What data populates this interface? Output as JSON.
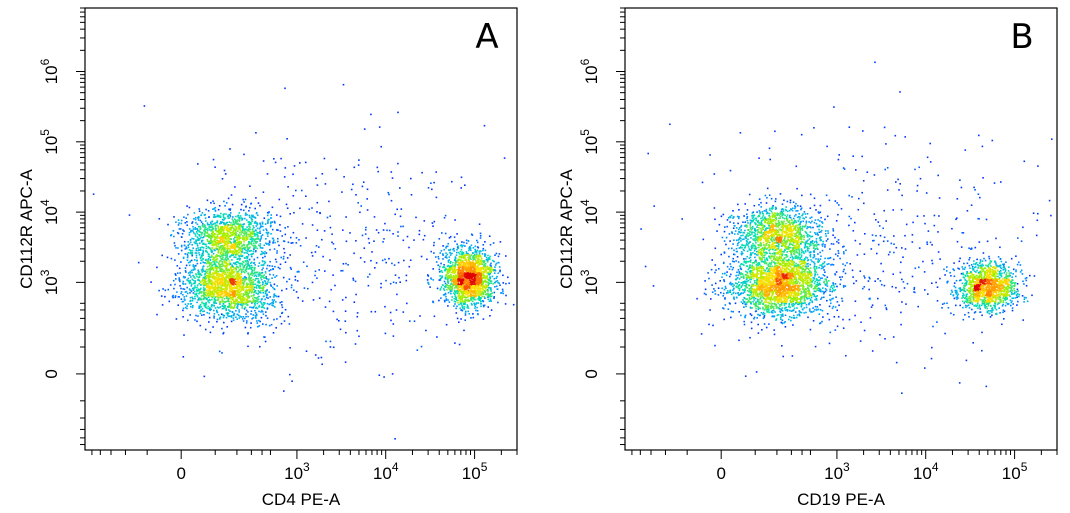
{
  "chart_data": [
    {
      "type": "scatter",
      "title": "",
      "panel_label": "A",
      "xlabel": "CD4 PE-A",
      "ylabel": "CD112R APC-A",
      "x_scale": "biexponential",
      "y_scale": "biexponential",
      "x_ticks": [
        {
          "value": 0,
          "base": "0",
          "exp": ""
        },
        {
          "value": 1000,
          "base": "10",
          "exp": "3"
        },
        {
          "value": 10000,
          "base": "10",
          "exp": "4"
        },
        {
          "value": 100000,
          "base": "10",
          "exp": "5"
        }
      ],
      "y_ticks": [
        {
          "value": 0,
          "base": "0",
          "exp": ""
        },
        {
          "value": 1000,
          "base": "10",
          "exp": "3"
        },
        {
          "value": 10000,
          "base": "10",
          "exp": "4"
        },
        {
          "value": 100000,
          "base": "10",
          "exp": "5"
        },
        {
          "value": 1000000,
          "base": "10",
          "exp": "6"
        }
      ],
      "populations": [
        {
          "x_center": 150,
          "y_center": 900,
          "x_spread": 0.6,
          "y_spread": 0.55,
          "weight": 0.36
        },
        {
          "x_center": 150,
          "y_center": 4500,
          "x_spread": 0.6,
          "y_spread": 0.45,
          "weight": 0.24
        },
        {
          "x_center": 85000,
          "y_center": 1200,
          "x_spread": 0.35,
          "y_spread": 0.5,
          "weight": 0.32
        },
        {
          "x_center": 3000,
          "y_center": 3000,
          "x_spread": 2.2,
          "y_spread": 2.0,
          "weight": 0.08
        }
      ],
      "colormap": [
        "#0000ff",
        "#00a0ff",
        "#00e0b0",
        "#a0f000",
        "#ffe000",
        "#ff8000",
        "#e00000"
      ],
      "grid": false,
      "legend": "none"
    },
    {
      "type": "scatter",
      "title": "",
      "panel_label": "B",
      "xlabel": "CD19 PE-A",
      "ylabel": "CD112R APC-A",
      "x_scale": "biexponential",
      "y_scale": "biexponential",
      "x_ticks": [
        {
          "value": 0,
          "base": "0",
          "exp": ""
        },
        {
          "value": 1000,
          "base": "10",
          "exp": "3"
        },
        {
          "value": 10000,
          "base": "10",
          "exp": "4"
        },
        {
          "value": 100000,
          "base": "10",
          "exp": "5"
        }
      ],
      "y_ticks": [
        {
          "value": 0,
          "base": "0",
          "exp": ""
        },
        {
          "value": 1000,
          "base": "10",
          "exp": "3"
        },
        {
          "value": 10000,
          "base": "10",
          "exp": "4"
        },
        {
          "value": 100000,
          "base": "10",
          "exp": "5"
        },
        {
          "value": 1000000,
          "base": "10",
          "exp": "6"
        }
      ],
      "populations": [
        {
          "x_center": 200,
          "y_center": 1000,
          "x_spread": 0.65,
          "y_spread": 0.55,
          "weight": 0.44
        },
        {
          "x_center": 200,
          "y_center": 5000,
          "x_spread": 0.6,
          "y_spread": 0.45,
          "weight": 0.24
        },
        {
          "x_center": 48000,
          "y_center": 900,
          "x_spread": 0.4,
          "y_spread": 0.4,
          "weight": 0.24
        },
        {
          "x_center": 2500,
          "y_center": 3500,
          "x_spread": 2.2,
          "y_spread": 2.0,
          "weight": 0.08
        }
      ],
      "colormap": [
        "#0000ff",
        "#00a0ff",
        "#00e0b0",
        "#a0f000",
        "#ffe000",
        "#ff8000",
        "#e00000"
      ],
      "grid": false,
      "legend": "none"
    }
  ]
}
